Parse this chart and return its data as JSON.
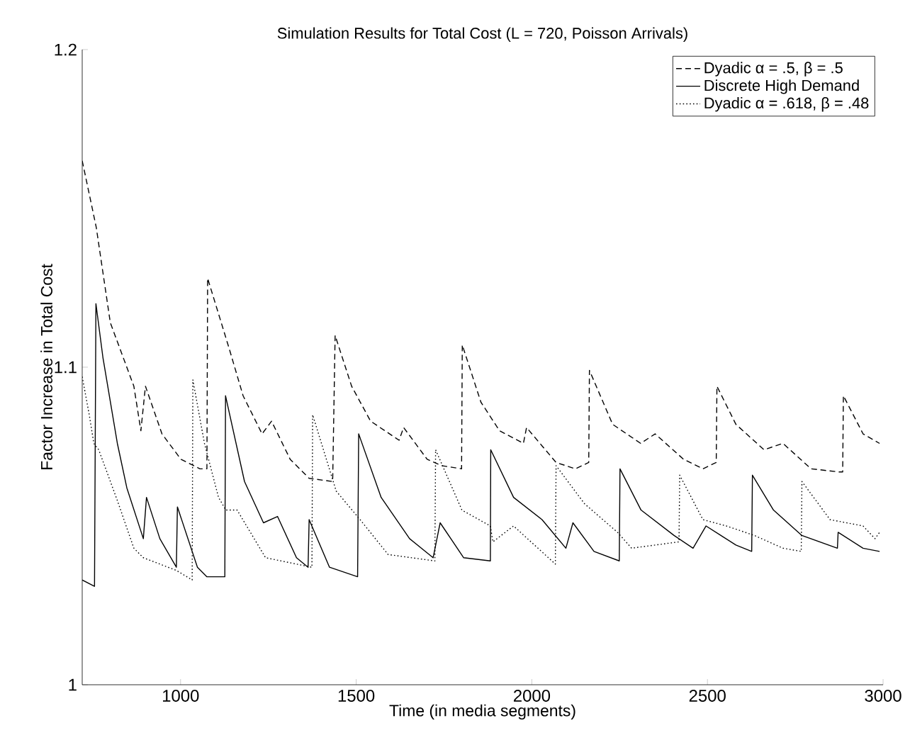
{
  "chart_data": {
    "type": "line",
    "title": "Simulation Results for Total Cost (L = 720, Poisson Arrivals)",
    "xlabel": "Time (in media segments)",
    "ylabel": "Factor Increase in Total Cost",
    "xlim": [
      720,
      3000
    ],
    "ylim": [
      1,
      1.2
    ],
    "xticks": [
      1000,
      1500,
      2000,
      2500,
      3000
    ],
    "yticks": [
      1,
      1.1,
      1.2
    ],
    "grid": false,
    "legend": "top right",
    "marker": "none",
    "series": [
      {
        "name": "Dyadic α = .5, β = .5",
        "color": "#000000",
        "line_style": "dashed",
        "x": [
          720,
          760,
          800,
          867,
          887,
          900,
          947,
          1001,
          1055,
          1075,
          1077,
          1138,
          1178,
          1232,
          1259,
          1312,
          1366,
          1433,
          1440,
          1487,
          1541,
          1622,
          1635,
          1702,
          1743,
          1800,
          1802,
          1855,
          1908,
          1976,
          1985,
          2069,
          2124,
          2162,
          2164,
          2230,
          2310,
          2351,
          2432,
          2487,
          2525,
          2527,
          2581,
          2661,
          2715,
          2795,
          2876,
          2885,
          2887,
          2943,
          2990
        ],
        "values": [
          1.165,
          1.144,
          1.114,
          1.094,
          1.08,
          1.094,
          1.079,
          1.071,
          1.068,
          1.068,
          1.128,
          1.106,
          1.091,
          1.079,
          1.083,
          1.071,
          1.065,
          1.064,
          1.11,
          1.094,
          1.083,
          1.077,
          1.081,
          1.071,
          1.069,
          1.068,
          1.107,
          1.089,
          1.08,
          1.076,
          1.081,
          1.07,
          1.068,
          1.07,
          1.099,
          1.082,
          1.076,
          1.079,
          1.071,
          1.068,
          1.07,
          1.094,
          1.082,
          1.074,
          1.076,
          1.068,
          1.067,
          1.067,
          1.091,
          1.079,
          1.076
        ]
      },
      {
        "name": "Discrete High Demand",
        "color": "#000000",
        "line_style": "solid",
        "x": [
          720,
          755,
          759,
          779,
          820,
          847,
          894,
          903,
          941,
          988,
          991,
          1048,
          1075,
          1126,
          1128,
          1182,
          1236,
          1276,
          1330,
          1363,
          1366,
          1424,
          1504,
          1507,
          1571,
          1652,
          1719,
          1739,
          1806,
          1882,
          1883,
          1948,
          2029,
          2097,
          2117,
          2177,
          2249,
          2251,
          2311,
          2405,
          2459,
          2496,
          2581,
          2626,
          2628,
          2688,
          2769,
          2870,
          2872,
          2943,
          2990
        ],
        "values": [
          1.033,
          1.031,
          1.12,
          1.103,
          1.076,
          1.062,
          1.046,
          1.059,
          1.046,
          1.037,
          1.056,
          1.037,
          1.034,
          1.034,
          1.091,
          1.064,
          1.051,
          1.053,
          1.04,
          1.037,
          1.052,
          1.037,
          1.034,
          1.079,
          1.059,
          1.046,
          1.04,
          1.051,
          1.04,
          1.039,
          1.074,
          1.059,
          1.052,
          1.043,
          1.051,
          1.042,
          1.039,
          1.068,
          1.055,
          1.047,
          1.043,
          1.05,
          1.044,
          1.042,
          1.066,
          1.055,
          1.047,
          1.043,
          1.048,
          1.043,
          1.042
        ]
      },
      {
        "name": "Dyadic α = .618, β = .48",
        "color": "#000000",
        "line_style": "dotted",
        "x": [
          720,
          740,
          753,
          767,
          820,
          867,
          894,
          988,
          1033,
          1035,
          1068,
          1108,
          1129,
          1161,
          1242,
          1374,
          1376,
          1443,
          1511,
          1591,
          1724,
          1726,
          1801,
          1882,
          1889,
          1948,
          2067,
          2069,
          2150,
          2244,
          2284,
          2419,
          2421,
          2487,
          2554,
          2634,
          2715,
          2767,
          2769,
          2849,
          2943,
          2977,
          2990
        ],
        "values": [
          1.097,
          1.085,
          1.076,
          1.074,
          1.058,
          1.043,
          1.04,
          1.036,
          1.033,
          1.096,
          1.076,
          1.059,
          1.055,
          1.055,
          1.04,
          1.037,
          1.085,
          1.061,
          1.052,
          1.041,
          1.039,
          1.074,
          1.055,
          1.05,
          1.045,
          1.05,
          1.038,
          1.069,
          1.057,
          1.048,
          1.043,
          1.045,
          1.066,
          1.052,
          1.05,
          1.047,
          1.043,
          1.042,
          1.064,
          1.052,
          1.05,
          1.046,
          1.048
        ]
      }
    ]
  }
}
